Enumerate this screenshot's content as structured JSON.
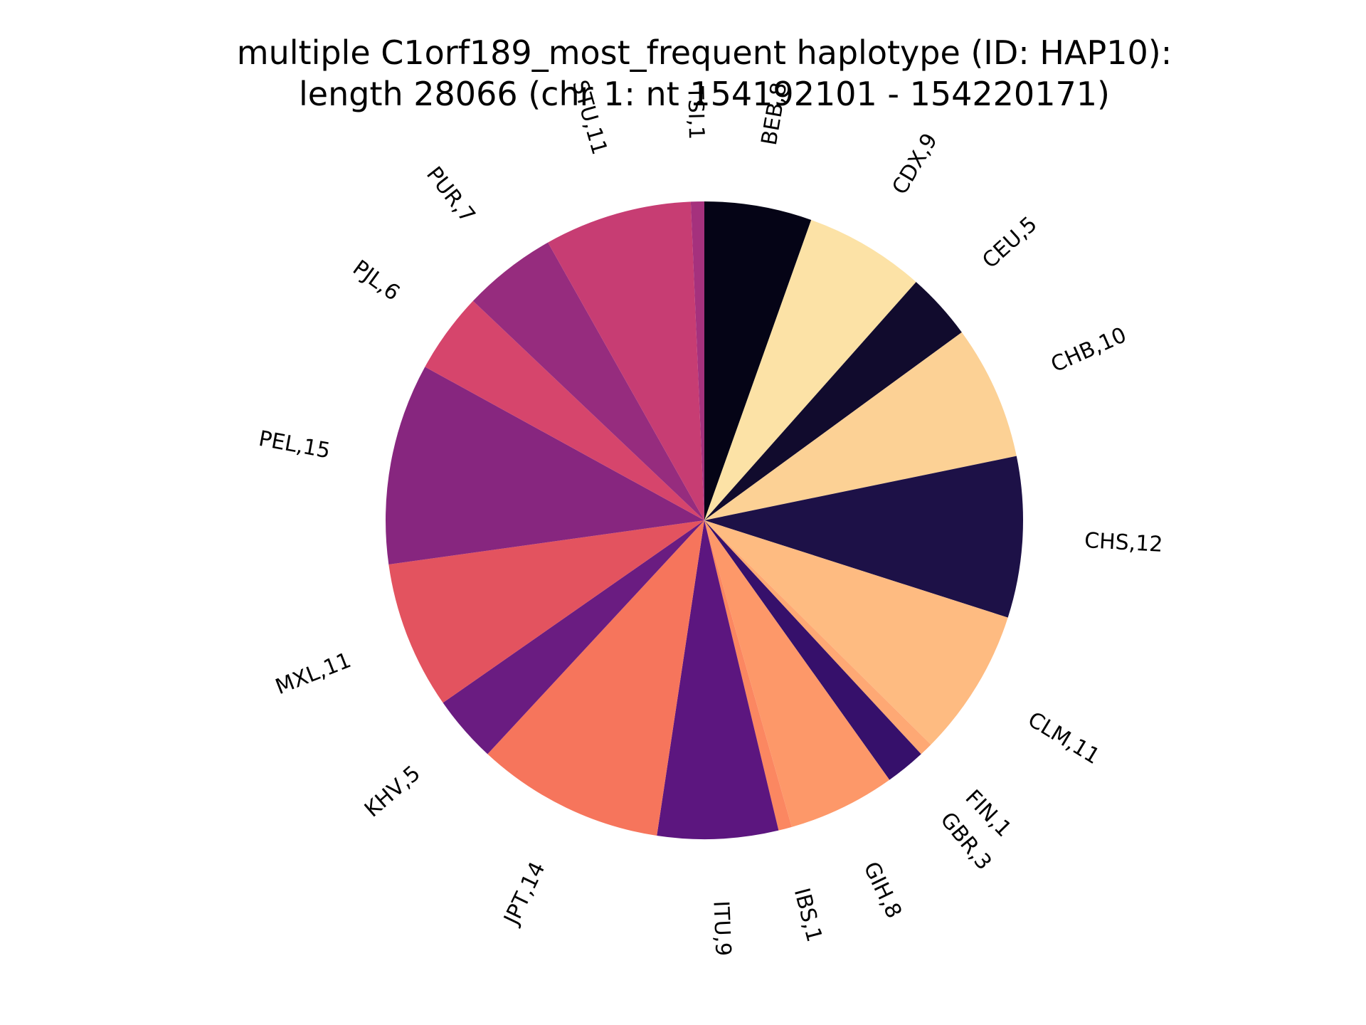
{
  "chart_data": {
    "type": "pie",
    "title": [
      "multiple C1orf189_most_frequent haplotype (ID: HAP10):",
      "length 28066 (chr 1: nt 154192101 - 154220171)"
    ],
    "start": "top",
    "direction": "clockwise",
    "slices": [
      {
        "label": "BEB,8",
        "value": 8,
        "color": "#050416"
      },
      {
        "label": "CDX,9",
        "value": 9,
        "color": "#fce2a6"
      },
      {
        "label": "CEU,5",
        "value": 5,
        "color": "#110b2d"
      },
      {
        "label": "CHB,10",
        "value": 10,
        "color": "#fcd195"
      },
      {
        "label": "CHS,12",
        "value": 12,
        "color": "#1d1147"
      },
      {
        "label": "CLM,11",
        "value": 11,
        "color": "#febb81"
      },
      {
        "label": "FIN,1",
        "value": 1,
        "color": "#fea874"
      },
      {
        "label": "GBR,3",
        "value": 3,
        "color": "#36106b"
      },
      {
        "label": "GIH,8",
        "value": 8,
        "color": "#fd9869"
      },
      {
        "label": "IBS,1",
        "value": 1,
        "color": "#fb8761"
      },
      {
        "label": "ITU,9",
        "value": 9,
        "color": "#5c167f"
      },
      {
        "label": "JPT,14",
        "value": 14,
        "color": "#f6755c"
      },
      {
        "label": "KHV,5",
        "value": 5,
        "color": "#6a1c81"
      },
      {
        "label": "MXL,11",
        "value": 11,
        "color": "#e3535f"
      },
      {
        "label": "PEL,15",
        "value": 15,
        "color": "#87267f"
      },
      {
        "label": "PJL,6",
        "value": 6,
        "color": "#d6456c"
      },
      {
        "label": "PUR,7",
        "value": 7,
        "color": "#962c7e"
      },
      {
        "label": "STU,11",
        "value": 11,
        "color": "#c73d73"
      },
      {
        "label": "TSI,1",
        "value": 1,
        "color": "#a5317d"
      }
    ]
  }
}
